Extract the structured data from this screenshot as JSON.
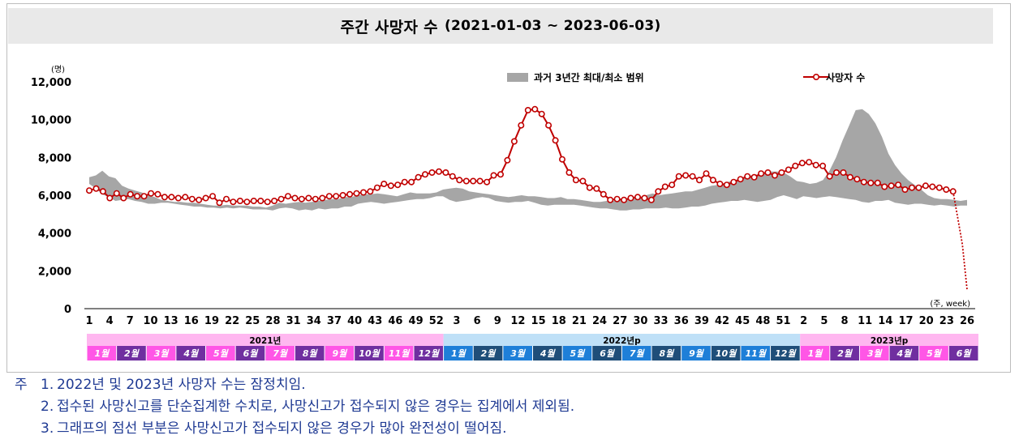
{
  "title": {
    "main": "주간 사망자 수",
    "sub": "(2021-01-03 ~ 2023-06-03)"
  },
  "chart_data": {
    "type": "line",
    "ylabel_unit": "(명)",
    "xlabel_unit": "(주, week)",
    "ylim": [
      0,
      12000
    ],
    "yticks": [
      0,
      2000,
      4000,
      6000,
      8000,
      10000,
      12000
    ],
    "ytick_labels": [
      "0",
      "2,000",
      "4,000",
      "6,000",
      "8,000",
      "10,000",
      "12,000"
    ],
    "xtick_labels": [
      "1",
      "4",
      "7",
      "10",
      "13",
      "16",
      "19",
      "22",
      "25",
      "28",
      "31",
      "34",
      "37",
      "40",
      "43",
      "46",
      "49",
      "52",
      "3",
      "6",
      "9",
      "12",
      "15",
      "18",
      "21",
      "24",
      "27",
      "30",
      "33",
      "36",
      "39",
      "42",
      "45",
      "48",
      "51",
      "2",
      "5",
      "8",
      "11",
      "14",
      "17",
      "20",
      "23",
      "26"
    ],
    "legend": {
      "band": "과거 3년간 최대/최소 범위",
      "line": "사망자 수",
      "position": "top"
    },
    "series": [
      {
        "name": "사망자 수",
        "color": "#c00000",
        "values": [
          6250,
          6350,
          6200,
          5850,
          6100,
          5850,
          6050,
          5950,
          5950,
          6100,
          6050,
          5900,
          5900,
          5850,
          5900,
          5800,
          5750,
          5850,
          5950,
          5600,
          5800,
          5650,
          5700,
          5650,
          5700,
          5700,
          5650,
          5700,
          5800,
          5950,
          5850,
          5800,
          5850,
          5800,
          5850,
          5950,
          5950,
          6000,
          6050,
          6100,
          6150,
          6200,
          6400,
          6600,
          6500,
          6550,
          6700,
          6700,
          6950,
          7100,
          7200,
          7250,
          7200,
          7000,
          6800,
          6750,
          6750,
          6750,
          6700,
          7050,
          7100,
          7850,
          8850,
          9700,
          10500,
          10550,
          10300,
          9700,
          8900,
          7900,
          7200,
          6800,
          6750,
          6400,
          6350,
          6050,
          5750,
          5800,
          5750,
          5850,
          5900,
          5850,
          5750,
          6200,
          6450,
          6550,
          7000,
          7050,
          7000,
          6800,
          7150,
          6800,
          6600,
          6550,
          6700,
          6850,
          7000,
          6950,
          7150,
          7200,
          7050,
          7200,
          7350,
          7550,
          7700,
          7750,
          7600,
          7550,
          7000,
          7200,
          7200,
          6950,
          6850,
          6700,
          6650,
          6650,
          6450,
          6500,
          6550,
          6300,
          6400,
          6400,
          6500,
          6450,
          6400,
          6300,
          6200
        ],
        "provisional_tail": [
          6200,
          4800,
          3400,
          1000
        ]
      },
      {
        "name": "과거 3년간 최대",
        "color": "#a6a6a6",
        "values": [
          6950,
          7050,
          7300,
          7000,
          6900,
          6500,
          6350,
          6250,
          6150,
          6000,
          5900,
          5750,
          5700,
          5650,
          5650,
          5600,
          5600,
          5550,
          5500,
          5450,
          5450,
          5500,
          5450,
          5450,
          5450,
          5400,
          5400,
          5350,
          5450,
          5600,
          5550,
          5600,
          5650,
          5600,
          5650,
          5700,
          5750,
          5800,
          5800,
          5900,
          5900,
          6000,
          6050,
          6050,
          6100,
          6050,
          6000,
          5950,
          6050,
          6150,
          6100,
          6100,
          6100,
          6150,
          6300,
          6350,
          6400,
          6350,
          6200,
          6150,
          6100,
          6050,
          6000,
          5950,
          5900,
          5950,
          6000,
          5950,
          5950,
          5900,
          5850,
          5850,
          5900,
          5800,
          5800,
          5750,
          5700,
          5650,
          5650,
          5700,
          5700,
          5800,
          5800,
          5850,
          5900,
          6000,
          6100,
          6000,
          6050,
          6100,
          6150,
          6200,
          6200,
          6300,
          6400,
          6500,
          6550,
          6650,
          6750,
          6850,
          6950,
          7050,
          7100,
          7200,
          7250,
          7250,
          7200,
          7000,
          6750,
          6700,
          6600,
          6650,
          6800,
          7300,
          8000,
          8900,
          9700,
          10500,
          10550,
          10300,
          9800,
          9100,
          8200,
          7600,
          7150,
          6800,
          6550,
          6300,
          6000,
          5850,
          5800,
          5800,
          5750,
          5700,
          5750
        ]
      },
      {
        "name": "과거 3년간 최소",
        "color": "#a6a6a6",
        "values": [
          6600,
          6350,
          6050,
          5900,
          5700,
          5750,
          5800,
          5700,
          5650,
          5550,
          5550,
          5600,
          5600,
          5550,
          5500,
          5450,
          5400,
          5400,
          5350,
          5350,
          5300,
          5350,
          5300,
          5350,
          5300,
          5250,
          5250,
          5250,
          5200,
          5300,
          5350,
          5300,
          5200,
          5250,
          5200,
          5300,
          5250,
          5300,
          5300,
          5400,
          5400,
          5550,
          5600,
          5650,
          5600,
          5550,
          5600,
          5650,
          5700,
          5750,
          5800,
          5800,
          5850,
          5950,
          5950,
          5750,
          5650,
          5700,
          5750,
          5850,
          5900,
          5850,
          5700,
          5650,
          5600,
          5650,
          5650,
          5700,
          5600,
          5500,
          5450,
          5500,
          5500,
          5500,
          5500,
          5450,
          5400,
          5350,
          5300,
          5300,
          5250,
          5200,
          5200,
          5250,
          5250,
          5300,
          5300,
          5300,
          5350,
          5300,
          5300,
          5350,
          5400,
          5400,
          5450,
          5550,
          5600,
          5650,
          5700,
          5700,
          5750,
          5700,
          5650,
          5700,
          5750,
          5900,
          6000,
          5900,
          5800,
          5950,
          5900,
          5850,
          5900,
          5950,
          5900,
          5850,
          5800,
          5750,
          5650,
          5600,
          5700,
          5700,
          5750,
          5600,
          5550,
          5500,
          5550,
          5550,
          5500,
          5450,
          5500,
          5450,
          5400,
          5450,
          5450
        ]
      }
    ],
    "period_bar": {
      "years": [
        {
          "label": "2021년",
          "color": "#ffb7f0"
        },
        {
          "label": "2022년p",
          "color": "#bfe0f7"
        },
        {
          "label": "2023년p",
          "color": "#ffb7f0"
        }
      ],
      "months": [
        {
          "label": "1월",
          "color": "#ff56e6"
        },
        {
          "label": "2월",
          "color": "#702fa0"
        },
        {
          "label": "3월",
          "color": "#ff56e6"
        },
        {
          "label": "4월",
          "color": "#702fa0"
        },
        {
          "label": "5월",
          "color": "#ff56e6"
        },
        {
          "label": "6월",
          "color": "#702fa0"
        },
        {
          "label": "7월",
          "color": "#ff56e6"
        },
        {
          "label": "8월",
          "color": "#702fa0"
        },
        {
          "label": "9월",
          "color": "#ff56e6"
        },
        {
          "label": "10월",
          "color": "#702fa0"
        },
        {
          "label": "11월",
          "color": "#ff56e6"
        },
        {
          "label": "12월",
          "color": "#702fa0"
        },
        {
          "label": "1월",
          "color": "#1e7fd8"
        },
        {
          "label": "2월",
          "color": "#1f4e79"
        },
        {
          "label": "3월",
          "color": "#1e7fd8"
        },
        {
          "label": "4월",
          "color": "#1f4e79"
        },
        {
          "label": "5월",
          "color": "#1e7fd8"
        },
        {
          "label": "6월",
          "color": "#1f4e79"
        },
        {
          "label": "7월",
          "color": "#1e7fd8"
        },
        {
          "label": "8월",
          "color": "#1f4e79"
        },
        {
          "label": "9월",
          "color": "#1e7fd8"
        },
        {
          "label": "10월",
          "color": "#1f4e79"
        },
        {
          "label": "11월",
          "color": "#1e7fd8"
        },
        {
          "label": "12월",
          "color": "#1f4e79"
        },
        {
          "label": "1월",
          "color": "#ff56e6"
        },
        {
          "label": "2월",
          "color": "#702fa0"
        },
        {
          "label": "3월",
          "color": "#ff56e6"
        },
        {
          "label": "4월",
          "color": "#702fa0"
        },
        {
          "label": "5월",
          "color": "#ff56e6"
        },
        {
          "label": "6월",
          "color": "#702fa0"
        }
      ]
    }
  },
  "notes": {
    "prefix": "주",
    "items": [
      {
        "num": "1.",
        "text": "2022년 및 2023년 사망자 수는 잠정치임."
      },
      {
        "num": "2.",
        "text": "접수된 사망신고를 단순집계한 수치로, 사망신고가 접수되지 않은 경우는 집계에서 제외됨."
      },
      {
        "num": "3.",
        "text": "그래프의 점선 부분은 사망신고가 접수되지 않은 경우가 많아 완전성이 떨어짐."
      }
    ]
  }
}
